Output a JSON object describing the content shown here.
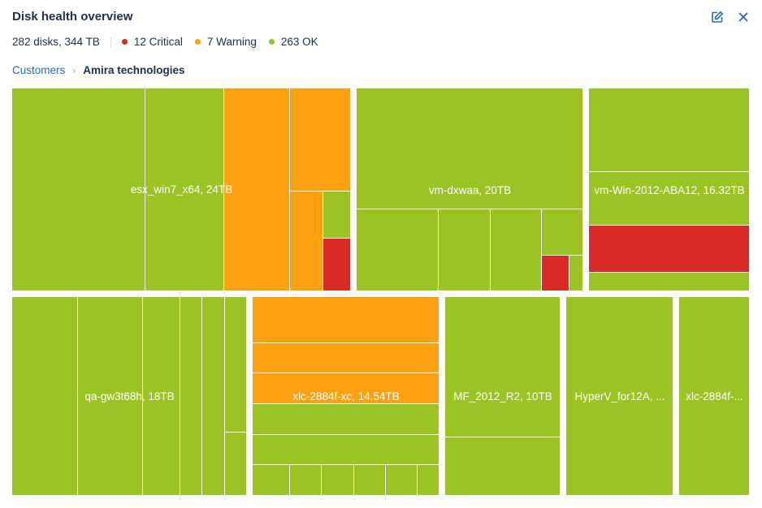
{
  "header": {
    "title": "Disk health overview",
    "edit_icon": "edit-icon",
    "close_icon": "close-icon"
  },
  "summary": {
    "totals": "282 disks, 344 TB",
    "critical": "12 Critical",
    "warning": "7 Warning",
    "ok": "263 OK"
  },
  "colors": {
    "critical": "#d92b25",
    "warning": "#fca211",
    "ok": "#9bc324",
    "link": "#2b69b0"
  },
  "breadcrumb": {
    "parent": "Customers",
    "current": "Amira technologies"
  },
  "machines": [
    {
      "label": "esx_win7_x64, 24TB"
    },
    {
      "label": "vm-dxwaa, 20TB"
    },
    {
      "label": "vm-Win-2012-ABA12, 16.32TB"
    },
    {
      "label": "qa-gw3t68h, 18TB"
    },
    {
      "label": "xlc-2884f-xc, 14.54TB"
    },
    {
      "label": "MF_2012_R2, 10TB"
    },
    {
      "label": "HyperV_for12A, ..."
    },
    {
      "label": "xlc-2884f-..."
    }
  ]
}
